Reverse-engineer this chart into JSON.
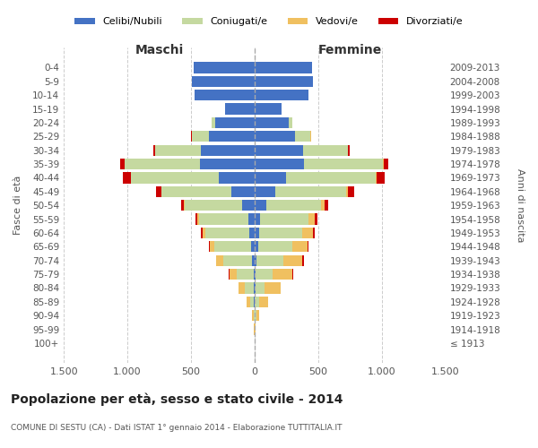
{
  "age_groups": [
    "100+",
    "95-99",
    "90-94",
    "85-89",
    "80-84",
    "75-79",
    "70-74",
    "65-69",
    "60-64",
    "55-59",
    "50-54",
    "45-49",
    "40-44",
    "35-39",
    "30-34",
    "25-29",
    "20-24",
    "15-19",
    "10-14",
    "5-9",
    "0-4"
  ],
  "birth_years": [
    "≤ 1913",
    "1914-1918",
    "1919-1923",
    "1924-1928",
    "1929-1933",
    "1934-1938",
    "1939-1943",
    "1944-1948",
    "1949-1953",
    "1954-1958",
    "1959-1963",
    "1964-1968",
    "1969-1973",
    "1974-1978",
    "1979-1983",
    "1984-1988",
    "1989-1993",
    "1994-1998",
    "1999-2003",
    "2004-2008",
    "2009-2013"
  ],
  "males": {
    "celibi": [
      0,
      1,
      2,
      5,
      5,
      10,
      20,
      30,
      40,
      50,
      100,
      180,
      280,
      430,
      420,
      360,
      310,
      230,
      470,
      490,
      480
    ],
    "coniugati": [
      0,
      2,
      8,
      30,
      70,
      130,
      230,
      290,
      350,
      390,
      450,
      550,
      690,
      590,
      360,
      130,
      30,
      5,
      0,
      0,
      0
    ],
    "vedovi": [
      0,
      2,
      8,
      30,
      50,
      60,
      50,
      30,
      20,
      10,
      5,
      5,
      5,
      5,
      5,
      2,
      0,
      0,
      0,
      0,
      0
    ],
    "divorziati": [
      0,
      0,
      0,
      0,
      0,
      5,
      5,
      10,
      10,
      15,
      20,
      40,
      60,
      30,
      15,
      5,
      0,
      0,
      0,
      0,
      0
    ]
  },
  "females": {
    "nubili": [
      0,
      1,
      2,
      3,
      5,
      8,
      15,
      25,
      35,
      45,
      90,
      160,
      250,
      390,
      380,
      320,
      270,
      210,
      420,
      460,
      450
    ],
    "coniugate": [
      0,
      2,
      10,
      35,
      70,
      130,
      210,
      270,
      340,
      380,
      430,
      560,
      700,
      620,
      350,
      120,
      25,
      5,
      0,
      0,
      0
    ],
    "vedove": [
      2,
      5,
      20,
      70,
      130,
      160,
      150,
      120,
      80,
      50,
      30,
      15,
      10,
      5,
      5,
      2,
      0,
      0,
      0,
      0,
      0
    ],
    "divorziate": [
      0,
      0,
      0,
      0,
      2,
      5,
      10,
      10,
      15,
      20,
      25,
      45,
      65,
      35,
      15,
      5,
      0,
      0,
      0,
      0,
      0
    ]
  },
  "colors": {
    "celibi": "#4472c4",
    "coniugati": "#c5d9a0",
    "vedovi": "#f0c060",
    "divorziati": "#cc0000"
  },
  "xlim": 1500,
  "xticks": [
    -1500,
    -1000,
    -500,
    0,
    500,
    1000,
    1500
  ],
  "xtick_labels": [
    "1.500",
    "1.000",
    "500",
    "0",
    "500",
    "1.000",
    "1.500"
  ],
  "title": "Popolazione per età, sesso e stato civile - 2014",
  "subtitle": "COMUNE DI SESTU (CA) - Dati ISTAT 1° gennaio 2014 - Elaborazione TUTTITALIA.IT",
  "ylabel_left": "Fasce di età",
  "ylabel_right": "Anni di nascita",
  "header_left": "Maschi",
  "header_right": "Femmine",
  "legend_labels": [
    "Celibi/Nubili",
    "Coniugati/e",
    "Vedovi/e",
    "Divorziati/e"
  ],
  "legend_colors": [
    "#4472c4",
    "#c5d9a0",
    "#f0c060",
    "#cc0000"
  ],
  "bg_color": "#ffffff",
  "grid_color": "#cccccc",
  "bar_height": 0.8
}
